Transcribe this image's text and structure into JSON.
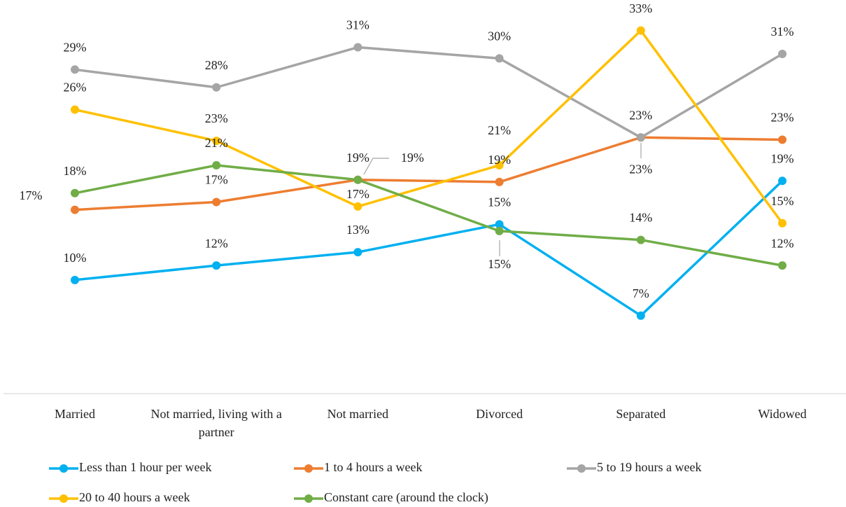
{
  "chart_data": {
    "type": "line",
    "categories": [
      "Married",
      "Not married, living with a partner",
      "Not married",
      "Divorced",
      "Separated",
      "Widowed"
    ],
    "ylim": [
      0,
      35
    ],
    "legend": "bottom",
    "series": [
      {
        "name": "Less than 1 hour per week",
        "color": "#00b0f0",
        "values": [
          10.2,
          11.5,
          12.7,
          15.2,
          7.0,
          19.1
        ],
        "value_labels": [
          "10%",
          "12%",
          "13%",
          "15%",
          "7%",
          "19%"
        ]
      },
      {
        "name": "1 to 4 hours a week",
        "color": "#ed7d31",
        "values": [
          16.5,
          17.2,
          19.2,
          19.0,
          23.0,
          22.8
        ],
        "value_labels": [
          "17%",
          "17%",
          "19%",
          "19%",
          "23%",
          "23%"
        ]
      },
      {
        "name": "5 to 19 hours a week",
        "color": "#a5a5a5",
        "values": [
          29.1,
          27.5,
          31.1,
          30.1,
          23.0,
          30.5
        ],
        "value_labels": [
          "29%",
          "28%",
          "31%",
          "30%",
          "23%",
          "31%"
        ]
      },
      {
        "name": "20 to 40 hours a week",
        "color": "#ffc000",
        "values": [
          25.5,
          22.7,
          16.8,
          20.5,
          32.6,
          15.3
        ],
        "value_labels": [
          "26%",
          "23%",
          "17%",
          "21%",
          "33%",
          "15%"
        ]
      },
      {
        "name": "Constant care (around the clock)",
        "color": "#70ad47",
        "values": [
          18.0,
          20.5,
          19.2,
          14.6,
          13.8,
          11.5
        ],
        "value_labels": [
          "18%",
          "21%",
          "19%",
          "15%",
          "14%",
          "12%"
        ]
      }
    ]
  }
}
